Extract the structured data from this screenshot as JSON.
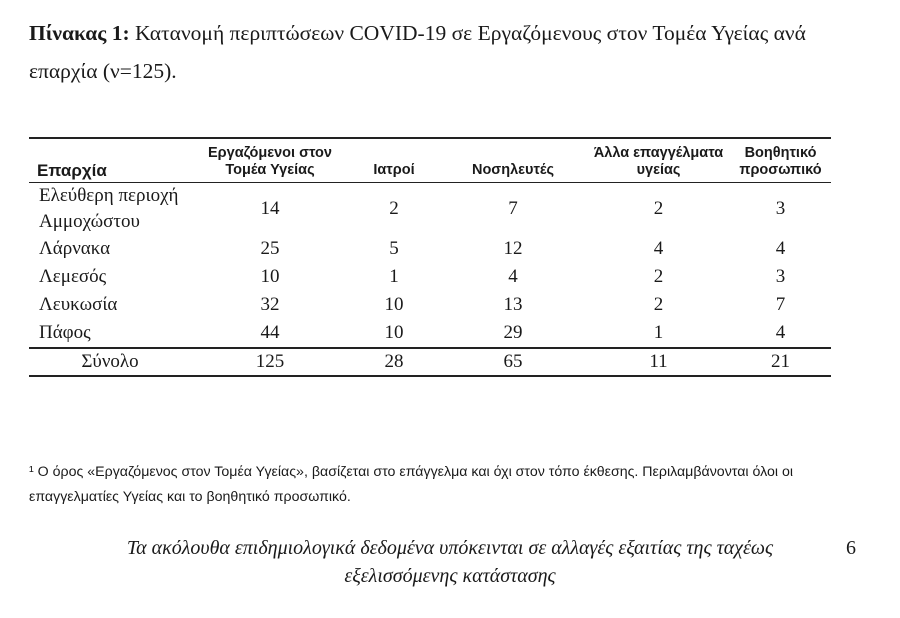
{
  "caption": {
    "label": "Πίνακας 1:",
    "text": " Κατανομή περιπτώσεων COVID-19 σε Εργαζόμενους στον Τομέα Υγείας ανά επαρχία (ν=125)."
  },
  "table": {
    "headers": [
      "Επαρχία",
      "Εργαζόμενοι στον Τομέα Υγείας",
      "Ιατροί",
      "Νοσηλευτές",
      "Άλλα επαγγέλματα υγείας",
      "Βοηθητικό προσωπικό"
    ],
    "rows": [
      [
        "Ελεύθερη περιοχή Αμμοχώστου",
        "14",
        "2",
        "7",
        "2",
        "3"
      ],
      [
        "Λάρνακα",
        "25",
        "5",
        "12",
        "4",
        "4"
      ],
      [
        "Λεμεσός",
        "10",
        "1",
        "4",
        "2",
        "3"
      ],
      [
        "Λευκωσία",
        "32",
        "10",
        "13",
        "2",
        "7"
      ],
      [
        "Πάφος",
        "44",
        "10",
        "29",
        "1",
        "4"
      ]
    ],
    "total": [
      "Σύνολο",
      "125",
      "28",
      "65",
      "11",
      "21"
    ]
  },
  "footnote": "¹ Ο όρος «Εργαζόμενος στον Τομέα Υγείας», βασίζεται στο επάγγελμα και όχι στον τόπο έκθεσης. Περιλαμβάνονται όλοι οι επαγγελματίες Υγείας και το βοηθητικό προσωπικό.",
  "footer": {
    "text": "Τα ακόλουθα επιδημιολογικά δεδομένα υπόκεινται σε αλλαγές εξαιτίας της ταχέως εξελισσόμενης κατάστασης",
    "page_number": "6"
  }
}
